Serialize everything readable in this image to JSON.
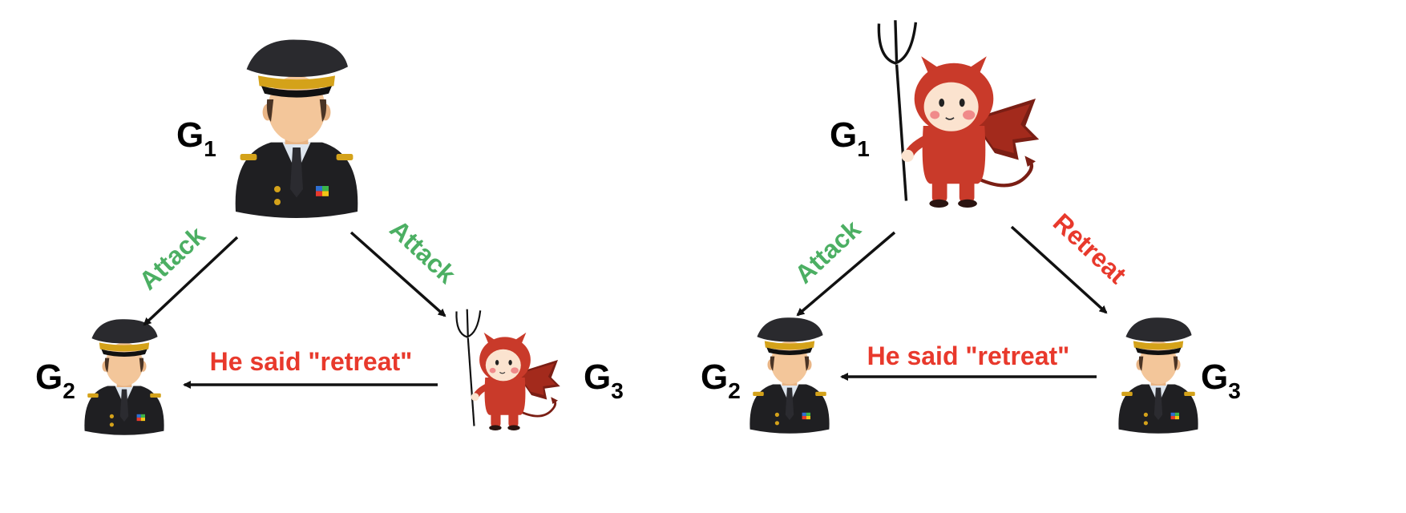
{
  "colors": {
    "attack": "#4caf63",
    "retreat": "#e8392c",
    "arrow": "#111111",
    "uniform": "#1f1f22",
    "cap_band": "#d4a21a",
    "skin": "#f3c69a",
    "devil": "#c93a2a",
    "devil_dark": "#7a1e14"
  },
  "left_scenario": {
    "g1": {
      "letter": "G",
      "sub": "1",
      "icon": "general-icon"
    },
    "g2": {
      "letter": "G",
      "sub": "2",
      "icon": "general-icon"
    },
    "g3": {
      "letter": "G",
      "sub": "3",
      "icon": "devil-traitor-icon"
    },
    "msg_g1_g2": "Attack",
    "msg_g1_g3": "Attack",
    "msg_g3_g2": "He said \"retreat\""
  },
  "right_scenario": {
    "g1": {
      "letter": "G",
      "sub": "1",
      "icon": "devil-traitor-icon"
    },
    "g2": {
      "letter": "G",
      "sub": "2",
      "icon": "general-icon"
    },
    "g3": {
      "letter": "G",
      "sub": "3",
      "icon": "general-icon"
    },
    "msg_g1_g2": "Attack",
    "msg_g1_g3": "Retreat",
    "msg_g3_g2": "He said \"retreat\""
  }
}
